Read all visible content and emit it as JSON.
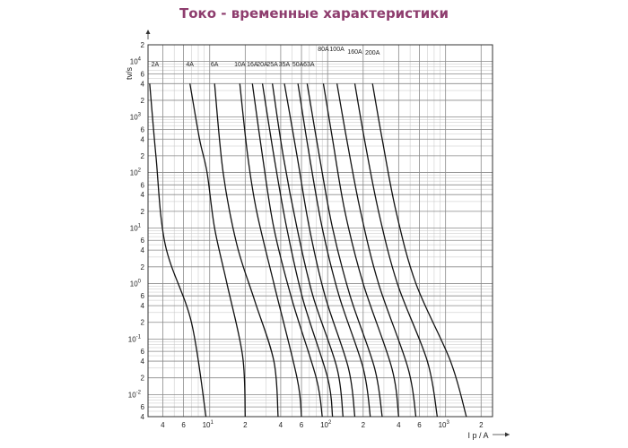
{
  "chart_data": {
    "type": "line",
    "title": "Токо - временные характеристики",
    "xlabel": "I p / A",
    "ylabel": "tv/s",
    "x_scale": "log",
    "y_scale": "log",
    "xlim": [
      3,
      2500
    ],
    "ylim": [
      0.004,
      20000
    ],
    "grid": true,
    "x_ticks": [
      {
        "m": "4",
        "e": "",
        "v": 4
      },
      {
        "m": "6",
        "e": "",
        "v": 6
      },
      {
        "m": "10",
        "e": "1",
        "v": 10
      },
      {
        "m": "2",
        "e": "",
        "v": 20
      },
      {
        "m": "4",
        "e": "",
        "v": 40
      },
      {
        "m": "6",
        "e": "",
        "v": 60
      },
      {
        "m": "10",
        "e": "2",
        "v": 100
      },
      {
        "m": "2",
        "e": "",
        "v": 200
      },
      {
        "m": "4",
        "e": "",
        "v": 400
      },
      {
        "m": "6",
        "e": "",
        "v": 600
      },
      {
        "m": "10",
        "e": "3",
        "v": 1000
      },
      {
        "m": "2",
        "e": "",
        "v": 2000
      }
    ],
    "y_ticks": [
      {
        "m": "2",
        "e": "",
        "v": 20000
      },
      {
        "m": "10",
        "e": "4",
        "v": 10000
      },
      {
        "m": "6",
        "e": "",
        "v": 6000
      },
      {
        "m": "4",
        "e": "",
        "v": 4000
      },
      {
        "m": "2",
        "e": "",
        "v": 2000
      },
      {
        "m": "10",
        "e": "3",
        "v": 1000
      },
      {
        "m": "6",
        "e": "",
        "v": 600
      },
      {
        "m": "4",
        "e": "",
        "v": 400
      },
      {
        "m": "2",
        "e": "",
        "v": 200
      },
      {
        "m": "10",
        "e": "2",
        "v": 100
      },
      {
        "m": "6",
        "e": "",
        "v": 60
      },
      {
        "m": "4",
        "e": "",
        "v": 40
      },
      {
        "m": "2",
        "e": "",
        "v": 20
      },
      {
        "m": "10",
        "e": "1",
        "v": 10
      },
      {
        "m": "6",
        "e": "",
        "v": 6
      },
      {
        "m": "4",
        "e": "",
        "v": 4
      },
      {
        "m": "2",
        "e": "",
        "v": 2
      },
      {
        "m": "10",
        "e": "0",
        "v": 1
      },
      {
        "m": "6",
        "e": "",
        "v": 0.6
      },
      {
        "m": "4",
        "e": "",
        "v": 0.4
      },
      {
        "m": "2",
        "e": "",
        "v": 0.2
      },
      {
        "m": "10",
        "e": "-1",
        "v": 0.1
      },
      {
        "m": "6",
        "e": "",
        "v": 0.06
      },
      {
        "m": "4",
        "e": "",
        "v": 0.04
      },
      {
        "m": "2",
        "e": "",
        "v": 0.02
      },
      {
        "m": "10",
        "e": "-2",
        "v": 0.01
      },
      {
        "m": "6",
        "e": "",
        "v": 0.006
      },
      {
        "m": "4",
        "e": "",
        "v": 0.004
      }
    ],
    "series": [
      {
        "name": "2A",
        "points": [
          [
            3.1,
            4000
          ],
          [
            3.5,
            200
          ],
          [
            4.2,
            5
          ],
          [
            7,
            0.2
          ],
          [
            9.3,
            0.004
          ]
        ]
      },
      {
        "name": "4A",
        "points": [
          [
            6.8,
            4000
          ],
          [
            8.2,
            400
          ],
          [
            9.5,
            100
          ],
          [
            11,
            10
          ],
          [
            14,
            1
          ],
          [
            19,
            0.05
          ],
          [
            20,
            0.004
          ]
        ]
      },
      {
        "name": "6A",
        "points": [
          [
            11,
            4000
          ],
          [
            13,
            100
          ],
          [
            17,
            5
          ],
          [
            24,
            0.5
          ],
          [
            35,
            0.04
          ],
          [
            38,
            0.004
          ]
        ]
      },
      {
        "name": "10A",
        "points": [
          [
            18,
            4000
          ],
          [
            21,
            200
          ],
          [
            25,
            20
          ],
          [
            35,
            1
          ],
          [
            55,
            0.02
          ],
          [
            60,
            0.004
          ]
        ]
      },
      {
        "name": "16A",
        "points": [
          [
            23,
            4000
          ],
          [
            28,
            200
          ],
          [
            35,
            10
          ],
          [
            50,
            0.5
          ],
          [
            80,
            0.02
          ],
          [
            90,
            0.004
          ]
        ]
      },
      {
        "name": "20A",
        "points": [
          [
            28,
            4000
          ],
          [
            35,
            200
          ],
          [
            45,
            10
          ],
          [
            62,
            0.5
          ],
          [
            100,
            0.02
          ],
          [
            110,
            0.004
          ]
        ]
      },
      {
        "name": "25A",
        "points": [
          [
            34,
            4000
          ],
          [
            42,
            200
          ],
          [
            55,
            10
          ],
          [
            75,
            0.6
          ],
          [
            120,
            0.03
          ],
          [
            135,
            0.004
          ]
        ]
      },
      {
        "name": "35A",
        "points": [
          [
            43,
            4000
          ],
          [
            55,
            200
          ],
          [
            70,
            10
          ],
          [
            95,
            0.6
          ],
          [
            150,
            0.03
          ],
          [
            170,
            0.004
          ]
        ]
      },
      {
        "name": "50A",
        "points": [
          [
            56,
            4000
          ],
          [
            70,
            200
          ],
          [
            90,
            10
          ],
          [
            125,
            0.6
          ],
          [
            200,
            0.03
          ],
          [
            230,
            0.004
          ]
        ]
      },
      {
        "name": "63A",
        "points": [
          [
            67,
            4000
          ],
          [
            85,
            200
          ],
          [
            110,
            10
          ],
          [
            155,
            0.6
          ],
          [
            250,
            0.03
          ],
          [
            290,
            0.004
          ]
        ]
      },
      {
        "name": "80A",
        "points": [
          [
            92,
            4000
          ],
          [
            110,
            400
          ],
          [
            140,
            20
          ],
          [
            200,
            1
          ],
          [
            350,
            0.03
          ],
          [
            400,
            0.004
          ]
        ]
      },
      {
        "name": "100A",
        "points": [
          [
            120,
            4000
          ],
          [
            145,
            400
          ],
          [
            190,
            20
          ],
          [
            270,
            1
          ],
          [
            480,
            0.03
          ],
          [
            560,
            0.004
          ]
        ]
      },
      {
        "name": "160A",
        "points": [
          [
            170,
            4000
          ],
          [
            205,
            400
          ],
          [
            270,
            20
          ],
          [
            390,
            1
          ],
          [
            700,
            0.04
          ],
          [
            850,
            0.004
          ]
        ]
      },
      {
        "name": "200A",
        "points": [
          [
            240,
            4000
          ],
          [
            290,
            400
          ],
          [
            380,
            20
          ],
          [
            560,
            1
          ],
          [
            1100,
            0.04
          ],
          [
            1500,
            0.004
          ]
        ]
      }
    ]
  }
}
